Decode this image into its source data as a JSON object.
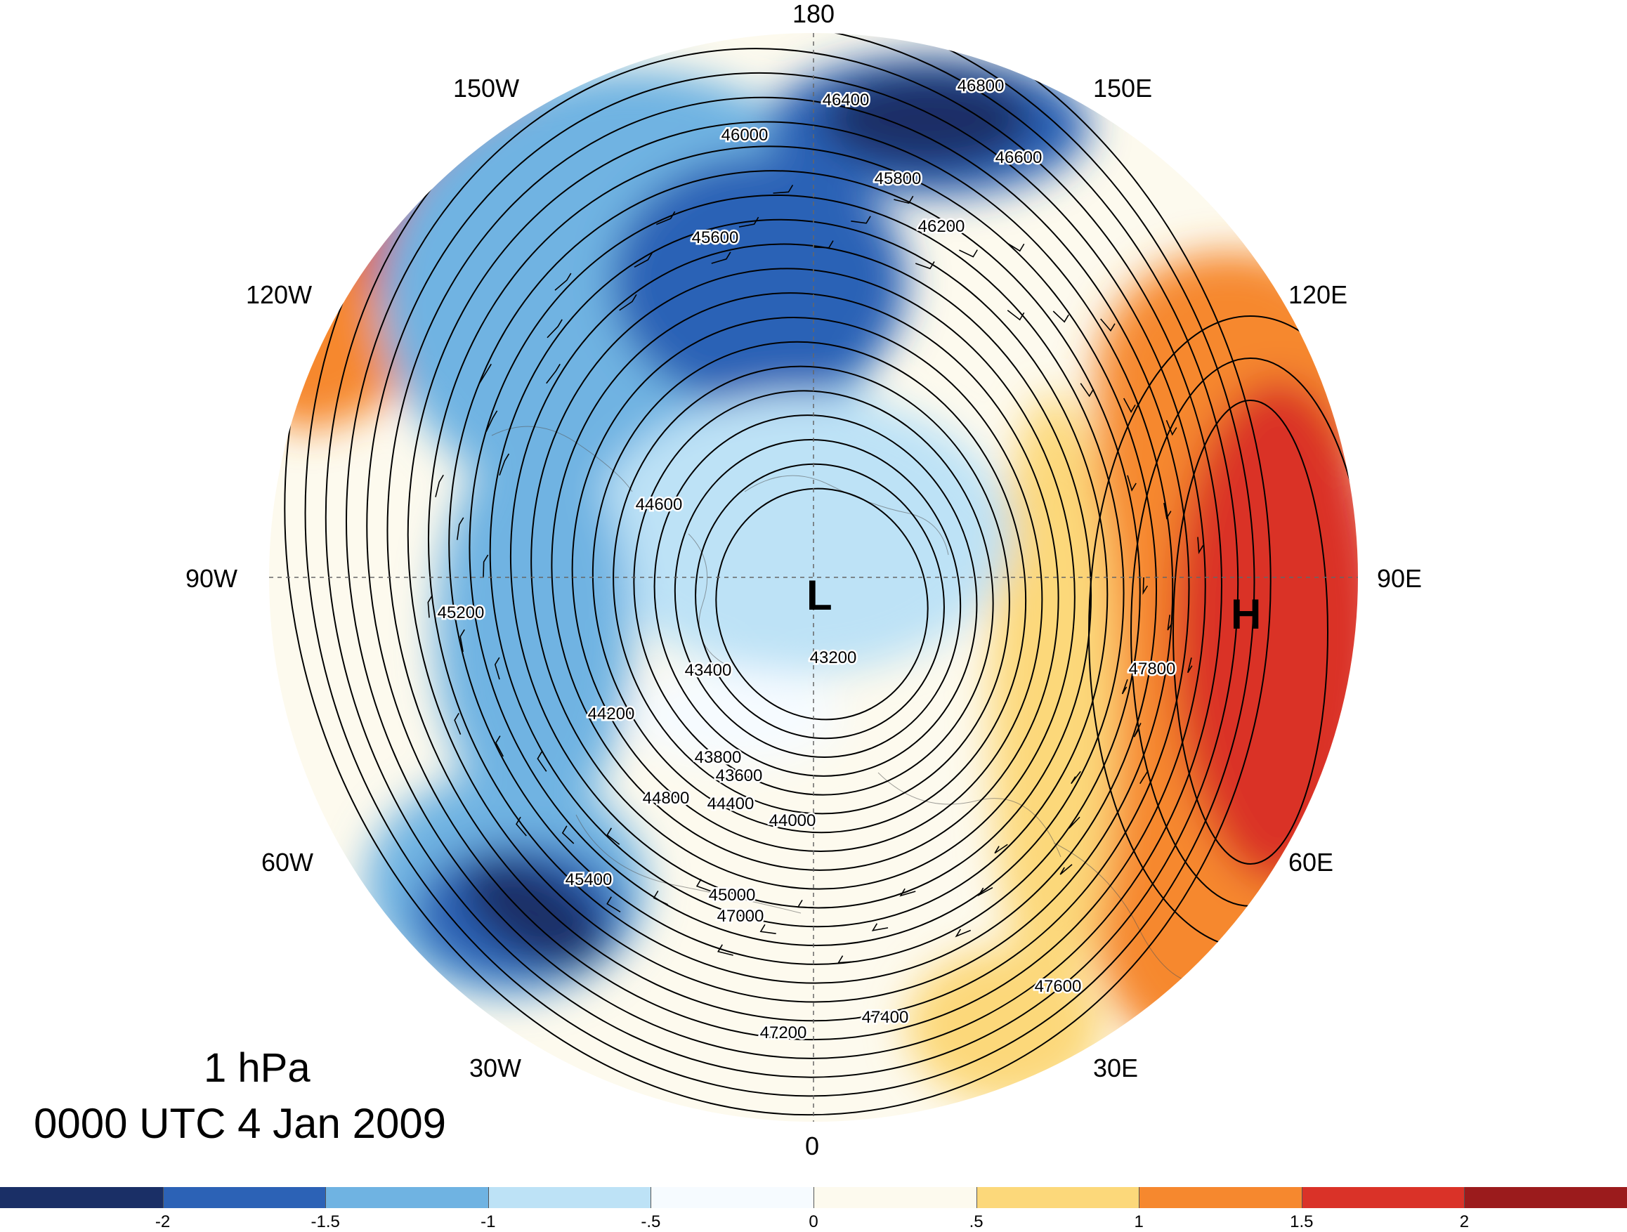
{
  "map": {
    "projection": "polar stereographic, north pole",
    "longitude_labels": [
      "180",
      "150E",
      "120E",
      "90E",
      "60E",
      "30E",
      "0",
      "30W",
      "60W",
      "90W",
      "120W",
      "150W"
    ],
    "low_marker": "L",
    "high_marker": "H",
    "contour_labels": [
      "43200",
      "43400",
      "43600",
      "43800",
      "44000",
      "44200",
      "44400",
      "44600",
      "44800",
      "45000",
      "45200",
      "45400",
      "45600",
      "45800",
      "46000",
      "46200",
      "46400",
      "46600",
      "46800",
      "47000",
      "47200",
      "47400",
      "47600",
      "47800"
    ],
    "colors": {
      "ocean_bg": "#ffffff",
      "contour": "#000000"
    }
  },
  "title": {
    "level": "1 hPa",
    "time": "0000 UTC 4 Jan 2009"
  },
  "colorbar": {
    "colors": [
      "#1a2f66",
      "#2c62b6",
      "#6fb3e2",
      "#bde2f6",
      "#f6fbff",
      "#fdfaee",
      "#fcd87a",
      "#f6882e",
      "#da3228",
      "#9b1b1c"
    ],
    "tick_labels": [
      "-2",
      "-1.5",
      "-1",
      "-.5",
      "0",
      ".5",
      "1",
      "1.5",
      "2"
    ]
  }
}
